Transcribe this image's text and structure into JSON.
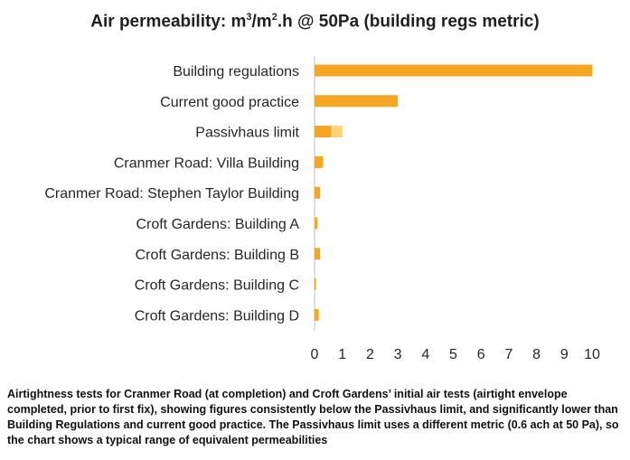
{
  "chart_data": {
    "type": "bar",
    "orientation": "horizontal",
    "title": "Air permeability: m³/m².h @ 50Pa (building regs metric)",
    "title_parts": [
      "Air permeability: m",
      "3",
      "/m",
      "2",
      ".h @ 50Pa (building regs metric)"
    ],
    "categories": [
      "Building regulations",
      "Current good practice",
      "Passivhaus limit",
      "Cranmer Road: Villa Building",
      "Cranmer Road: Stephen Taylor Building",
      "Croft Gardens: Building A",
      "Croft Gardens: Building B",
      "Croft Gardens: Building C",
      "Croft Gardens: Building D"
    ],
    "values": [
      10,
      3,
      0.6,
      0.3,
      0.2,
      0.1,
      0.2,
      0.05,
      0.15
    ],
    "range_extension": [
      0,
      0,
      0.4,
      0,
      0,
      0,
      0,
      0,
      0
    ],
    "xlim": [
      0,
      10
    ],
    "xticks": [
      0,
      1,
      2,
      3,
      4,
      5,
      6,
      7,
      8,
      9,
      10
    ],
    "xlabel": "",
    "ylabel": "",
    "grid": false,
    "legend": "none",
    "colors": {
      "bar": "#f5a623",
      "range": "#fbd27a"
    }
  },
  "caption": "Airtightness tests for Cranmer Road (at completion) and Croft Gardens’ initial air tests (airtight envelope completed, prior to first fix), showing figures consistently below the Passivhaus limit, and significantly lower than Building Regulations and current good practice. The Passivhaus limit uses a different metric (0.6 ach at 50 Pa), so the chart shows a typical range of equivalent permeabilities"
}
